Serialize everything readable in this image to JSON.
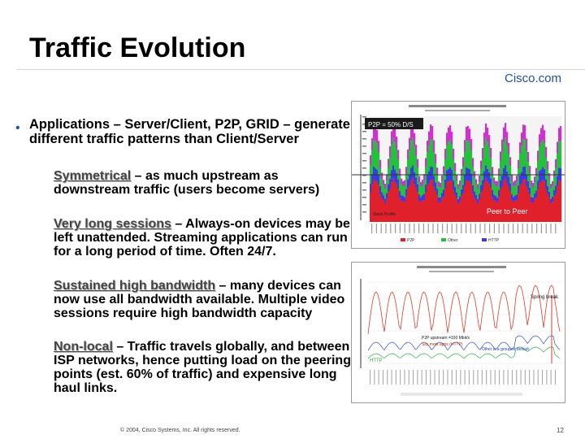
{
  "slide": {
    "title": "Traffic Evolution",
    "brand": "Cisco.com",
    "main_bullet": "Applications – Server/Client, P2P, GRID – generate different traffic patterns than Client/Server",
    "sub_bullets": [
      {
        "term": "Symmetrical",
        "text": " – as much upstream as downstream traffic (users become servers)"
      },
      {
        "term": "Very long sessions",
        "text": " – Always-on devices may be left unattended. Streaming applications can run for a long period of time. Often 24/7."
      },
      {
        "term": "Sustained high bandwidth",
        "text": " – many devices can now use all bandwidth available. Multiple video sessions require high bandwidth capacity"
      },
      {
        "term": "Non-local",
        "text": " – Traffic travels globally, and between ISP networks, hence putting load on the peering points (est. 60% of traffic) and expensive long haul links."
      }
    ],
    "footer_copyright": "© 2004, Cisco Systems, Inc. All rights reserved.",
    "page_number": "12"
  },
  "chart_top": {
    "annotation_box": "P2P = 50% D/S",
    "annotation_peer": "Peer to Peer",
    "legend_items": [
      "P2P",
      "Other",
      "HTTP"
    ]
  },
  "chart_bottom": {
    "annotation_spring": "Spring break",
    "annotation_p2p_1": "P2P upstream =100 Mbit/s",
    "annotation_p2p_2": "Sits most apps (HTTP)",
    "annotation_other": "Other is a grouped default",
    "annotation_http": "HTTP"
  },
  "colors": {
    "title_text": "#000000",
    "brand_text": "#1f4e9e",
    "bullet_dot": "#2255aa",
    "p2p_red": "#e0202a",
    "other_green": "#22c23a",
    "http_blue": "#3a3ae8",
    "top_magenta": "#d22fd2",
    "line_red": "#e03a2a",
    "line_blue": "#3050d0",
    "line_green": "#30b040"
  }
}
